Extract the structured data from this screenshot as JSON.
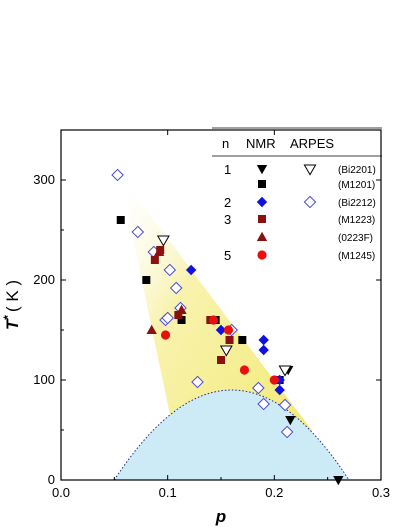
{
  "chart_data": {
    "type": "scatter",
    "xlabel": "p",
    "ylabel_main": "T",
    "ylabel_sup": "*",
    "ylabel_unit": "( K )",
    "xlim": [
      0.0,
      0.3
    ],
    "ylim": [
      0,
      350
    ],
    "xticks": [
      0.0,
      0.1,
      0.2,
      0.3
    ],
    "xtick_labels": [
      "0.0",
      "0.1",
      "0.2",
      "0.3"
    ],
    "yticks": [
      0,
      100,
      200,
      300
    ],
    "ytick_labels": [
      "0",
      "100",
      "200",
      "300"
    ],
    "grid": false,
    "legend_position": "top-right",
    "legend": {
      "headers": [
        "n",
        "NMR",
        "ARPES"
      ],
      "rows": [
        {
          "n": "1",
          "nmr_marker": "triangle-down",
          "nmr_color": "#000000",
          "arpes_marker": "open-triangle-down",
          "arpes_color": "#000000",
          "system": "(Bi2201)"
        },
        {
          "n": "",
          "nmr_marker": "square",
          "nmr_color": "#000000",
          "arpes_marker": "",
          "arpes_color": "",
          "system": "(M1201)"
        },
        {
          "n": "2",
          "nmr_marker": "diamond",
          "nmr_color": "#1010e0",
          "arpes_marker": "open-diamond",
          "arpes_color": "#4a4ad8",
          "system": "(Bi2212)"
        },
        {
          "n": "3",
          "nmr_marker": "square",
          "nmr_color": "#8b1010",
          "arpes_marker": "",
          "arpes_color": "",
          "system": "(M1223)"
        },
        {
          "n": "",
          "nmr_marker": "triangle-up",
          "nmr_color": "#8b1010",
          "arpes_marker": "",
          "arpes_color": "",
          "system": "(0223F)"
        },
        {
          "n": "5",
          "nmr_marker": "circle",
          "nmr_color": "#e81010",
          "arpes_marker": "",
          "arpes_color": "",
          "system": "(M1245)"
        }
      ]
    },
    "shading": {
      "triangle_color": "#f5ee7a",
      "dome_color": "#cdeaf7",
      "dome_peak": {
        "x": 0.16,
        "y": 90
      },
      "dome_ends": [
        0.05,
        0.27
      ],
      "triangle_apex": {
        "x": 0.055,
        "y": 305
      },
      "triangle_end": {
        "x": 0.235,
        "y": 50
      }
    },
    "series": [
      {
        "name": "Bi2201 NMR",
        "marker": "triangle-down",
        "color": "#000000",
        "points": [
          [
            0.213,
            110
          ],
          [
            0.215,
            60
          ],
          [
            0.26,
            0
          ]
        ]
      },
      {
        "name": "Bi2201 ARPES",
        "marker": "open-triangle-down",
        "color": "#000000",
        "points": [
          [
            0.096,
            240
          ],
          [
            0.155,
            130
          ],
          [
            0.21,
            110
          ]
        ]
      },
      {
        "name": "M1201 NMR",
        "marker": "square",
        "color": "#000000",
        "points": [
          [
            0.056,
            260
          ],
          [
            0.08,
            200
          ],
          [
            0.113,
            160
          ],
          [
            0.145,
            160
          ],
          [
            0.17,
            140
          ],
          [
            0.205,
            100
          ]
        ]
      },
      {
        "name": "Bi2212 NMR",
        "marker": "diamond",
        "color": "#1010e0",
        "points": [
          [
            0.122,
            210
          ],
          [
            0.15,
            150
          ],
          [
            0.19,
            140
          ],
          [
            0.19,
            130
          ],
          [
            0.205,
            100
          ],
          [
            0.205,
            90
          ]
        ]
      },
      {
        "name": "Bi2212 ARPES",
        "marker": "open-diamond",
        "color": "#4a4ad8",
        "points": [
          [
            0.053,
            305
          ],
          [
            0.072,
            248
          ],
          [
            0.087,
            228
          ],
          [
            0.098,
            160
          ],
          [
            0.102,
            210
          ],
          [
            0.108,
            192
          ],
          [
            0.112,
            172
          ],
          [
            0.1,
            162
          ],
          [
            0.128,
            98
          ],
          [
            0.16,
            150
          ],
          [
            0.185,
            92
          ],
          [
            0.19,
            76
          ],
          [
            0.21,
            75
          ],
          [
            0.212,
            48
          ]
        ]
      },
      {
        "name": "M1223 NMR",
        "marker": "square",
        "color": "#8b1010",
        "points": [
          [
            0.088,
            220
          ],
          [
            0.093,
            230
          ],
          [
            0.11,
            165
          ],
          [
            0.14,
            160
          ],
          [
            0.15,
            120
          ],
          [
            0.158,
            140
          ]
        ]
      },
      {
        "name": "0223F NMR",
        "marker": "triangle-up",
        "color": "#8b1010",
        "points": [
          [
            0.085,
            150
          ],
          [
            0.092,
            228
          ],
          [
            0.113,
            170
          ]
        ]
      },
      {
        "name": "M1245 NMR",
        "marker": "circle",
        "color": "#e81010",
        "points": [
          [
            0.098,
            145
          ],
          [
            0.143,
            160
          ],
          [
            0.157,
            150
          ],
          [
            0.172,
            110
          ],
          [
            0.2,
            100
          ]
        ]
      }
    ]
  }
}
